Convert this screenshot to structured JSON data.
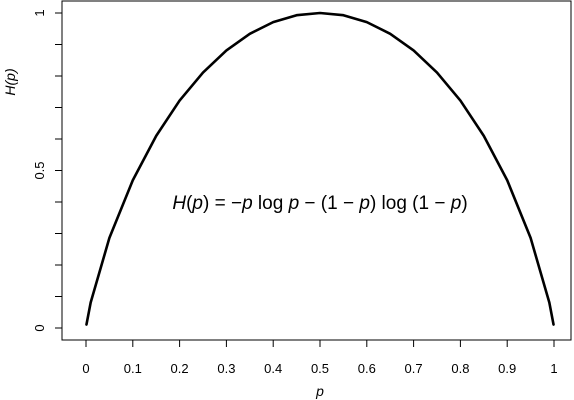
{
  "chart_data": {
    "type": "line",
    "title": "",
    "xlabel": "p",
    "ylabel": "H(p)",
    "xlim": [
      0,
      1
    ],
    "ylim": [
      0,
      1
    ],
    "xticks": [
      0,
      0.1,
      0.2,
      0.3,
      0.4,
      0.5,
      0.6,
      0.7,
      0.8,
      0.9,
      1
    ],
    "xtick_labels": [
      "0",
      "0.1",
      "0.2",
      "0.3",
      "0.4",
      "0.5",
      "0.6",
      "0.7",
      "0.8",
      "0.9",
      "1"
    ],
    "yticks": [
      0,
      0.1,
      0.2,
      0.3,
      0.4,
      0.5,
      0.6,
      0.7,
      0.8,
      0.9,
      1
    ],
    "ytick_labels": [
      "0",
      "",
      "",
      "",
      "",
      "0.5",
      "",
      "",
      "",
      "",
      "1"
    ],
    "grid": false,
    "series": [
      {
        "x": [
          0.001,
          0.01,
          0.05,
          0.1,
          0.15,
          0.2,
          0.25,
          0.3,
          0.35,
          0.4,
          0.45,
          0.5,
          0.55,
          0.6,
          0.65,
          0.7,
          0.75,
          0.8,
          0.85,
          0.9,
          0.95,
          0.99,
          0.999
        ],
        "y": [
          0.011,
          0.081,
          0.286,
          0.469,
          0.61,
          0.722,
          0.811,
          0.881,
          0.934,
          0.971,
          0.993,
          1.0,
          0.993,
          0.971,
          0.934,
          0.881,
          0.811,
          0.722,
          0.61,
          0.469,
          0.286,
          0.081,
          0.011
        ],
        "color": "#000000"
      }
    ],
    "annotation": {
      "parts": [
        {
          "t": "H",
          "italic": true
        },
        {
          "t": "(",
          "italic": false
        },
        {
          "t": "p",
          "italic": true
        },
        {
          "t": ") = −",
          "italic": false
        },
        {
          "t": "p",
          "italic": true
        },
        {
          "t": " log ",
          "italic": false
        },
        {
          "t": "p",
          "italic": true
        },
        {
          "t": " − (1 − ",
          "italic": false
        },
        {
          "t": "p",
          "italic": true
        },
        {
          "t": ") log (1 − ",
          "italic": false
        },
        {
          "t": "p",
          "italic": true
        },
        {
          "t": ")",
          "italic": false
        }
      ],
      "x": 0.5,
      "y": 0.4
    }
  }
}
